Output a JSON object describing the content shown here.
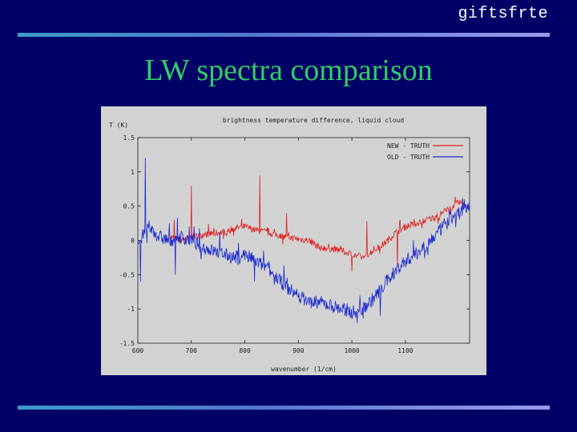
{
  "header": {
    "brand": "giftsfrte"
  },
  "slide": {
    "title": "LW spectra comparison"
  },
  "chart_data": {
    "type": "line",
    "title": "brightness temperature difference, liquid cloud",
    "ylabel": "T (K)",
    "xlabel": "wavenumber (1/cm)",
    "xlim": [
      600,
      1220
    ],
    "ylim": [
      -1.5,
      1.5
    ],
    "x_ticks": [
      600,
      700,
      800,
      900,
      1000,
      1100
    ],
    "x_tick_labels": [
      "600",
      "700",
      "800",
      "900",
      "1000",
      "1100"
    ],
    "y_ticks": [
      1.5,
      1,
      0.5,
      0,
      -0.5,
      -1,
      -1.5
    ],
    "y_tick_labels": [
      "1.5",
      "1",
      "0.5",
      "0",
      "-0.5",
      "-1",
      "-1.5"
    ],
    "legend_position": "top-right",
    "colors": {
      "new": "#e02020",
      "old": "#1a2ad0",
      "plot_bg": "#d2d2d2"
    },
    "series": [
      {
        "name": "NEW - TRUTH",
        "color": "#e02020",
        "x": [
          660,
          680,
          700,
          720,
          740,
          760,
          780,
          800,
          820,
          840,
          860,
          880,
          900,
          920,
          940,
          960,
          980,
          1000,
          1020,
          1040,
          1060,
          1080,
          1100,
          1120,
          1140,
          1160,
          1180,
          1200,
          1220
        ],
        "y": [
          0.05,
          0.0,
          0.05,
          0.08,
          0.1,
          0.12,
          0.18,
          0.2,
          0.15,
          0.12,
          0.08,
          0.05,
          0.02,
          0.0,
          -0.1,
          -0.12,
          -0.15,
          -0.2,
          -0.25,
          -0.15,
          -0.05,
          0.1,
          0.2,
          0.25,
          0.3,
          0.35,
          0.45,
          0.55,
          0.5
        ],
        "spikes": [
          [
            828,
            0.95
          ],
          [
            700,
            0.8
          ],
          [
            878,
            0.4
          ],
          [
            668,
            0.3
          ],
          [
            1028,
            0.28
          ],
          [
            1000,
            -0.45
          ],
          [
            1085,
            -0.38
          ],
          [
            1090,
            0.3
          ]
        ]
      },
      {
        "name": "OLD - TRUTH",
        "color": "#1a2ad0",
        "x": [
          600,
          620,
          640,
          660,
          680,
          700,
          720,
          740,
          760,
          780,
          800,
          820,
          840,
          860,
          880,
          900,
          920,
          940,
          960,
          980,
          1000,
          1020,
          1040,
          1060,
          1080,
          1100,
          1120,
          1140,
          1160,
          1180,
          1200,
          1220
        ],
        "y": [
          -0.05,
          0.2,
          0.05,
          0.0,
          0.05,
          0.0,
          -0.1,
          -0.15,
          -0.2,
          -0.25,
          -0.2,
          -0.3,
          -0.4,
          -0.55,
          -0.7,
          -0.8,
          -0.9,
          -0.9,
          -0.95,
          -1.0,
          -1.05,
          -1.0,
          -0.85,
          -0.65,
          -0.45,
          -0.3,
          -0.2,
          -0.05,
          0.1,
          0.3,
          0.4,
          0.5
        ],
        "spikes": [
          [
            614,
            1.2
          ],
          [
            605,
            -0.6
          ],
          [
            670,
            -0.5
          ],
          [
            818,
            -0.6
          ],
          [
            835,
            -0.15
          ],
          [
            1010,
            -1.2
          ],
          [
            1053,
            -1.1
          ],
          [
            1210,
            0.6
          ]
        ]
      }
    ]
  }
}
